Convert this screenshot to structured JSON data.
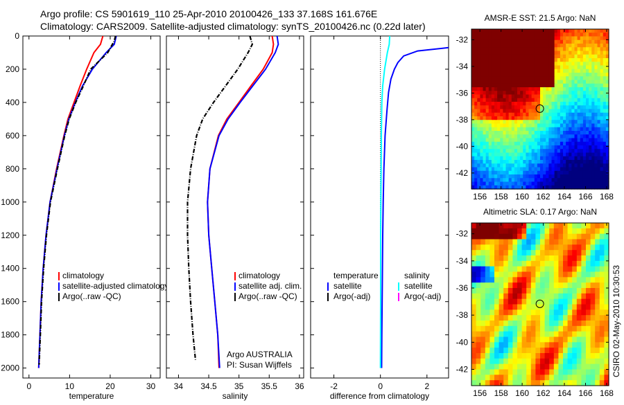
{
  "title_lines": [
    "Argo profile: CS 5901619_110 25-Apr-2010 20100426_133 37.168S 161.676E",
    "Climatology: CARS2009. Satellite-adjusted climatology: synTS_20100426.nc (0.22d later)"
  ],
  "side_label": "CSIRO 02-May-2010 10:30:53",
  "credit": [
    "Argo AUSTRALIA",
    "PI: Susan Wijffels"
  ],
  "chart_data": [
    {
      "type": "line",
      "id": "temperature",
      "xlabel": "temperature",
      "ylabel": "",
      "xlim": [
        -1.5,
        32.3
      ],
      "ylim": [
        0,
        2060
      ],
      "xticks": [
        0,
        10,
        20,
        30
      ],
      "yticks": [
        0,
        200,
        400,
        600,
        800,
        1000,
        1200,
        1400,
        1600,
        1800,
        2000
      ],
      "legend": [
        "climatology",
        "satellite-adjusted climatology",
        "Argo(..raw -QC)"
      ],
      "series": [
        {
          "name": "climatology",
          "color": "#ff0000",
          "depth": [
            0,
            50,
            100,
            200,
            300,
            400,
            500,
            600,
            800,
            1000,
            1200,
            1400,
            1600,
            1800,
            2000
          ],
          "values": [
            18.2,
            17.6,
            16,
            14.2,
            12.6,
            11.1,
            9.6,
            8.6,
            6.8,
            5.2,
            4.2,
            3.5,
            3,
            2.7,
            2.4
          ]
        },
        {
          "name": "satellite-adjusted climatology",
          "color": "#0000ff",
          "depth": [
            0,
            50,
            100,
            200,
            300,
            400,
            500,
            600,
            800,
            1000,
            1200,
            1400,
            1600,
            1800,
            2000
          ],
          "values": [
            21.5,
            21,
            19,
            15.6,
            13.2,
            11.4,
            9.8,
            8.7,
            6.9,
            5.2,
            4.2,
            3.5,
            3,
            2.7,
            2.4
          ]
        },
        {
          "name": "Argo(..raw -QC)",
          "color": "#000000",
          "depth": [
            0,
            30,
            100,
            200,
            300,
            400,
            500,
            600,
            800,
            1000,
            1200,
            1400,
            1600,
            1800,
            1980
          ],
          "values": [
            21.3,
            21,
            19.4,
            15.2,
            13.4,
            11.5,
            9.9,
            8.8,
            7,
            5.3,
            4.3,
            3.6,
            3.1,
            2.8,
            2.5
          ]
        }
      ]
    },
    {
      "type": "line",
      "id": "salinity",
      "xlabel": "salinity",
      "xlim": [
        33.8,
        36.07
      ],
      "ylim": [
        0,
        2060
      ],
      "xticks": [
        34,
        34.5,
        35,
        35.5,
        36
      ],
      "legend": [
        "climatology",
        "satellite adj. clim.",
        "Argo(..raw -QC)"
      ],
      "series": [
        {
          "name": "climatology",
          "color": "#ff0000",
          "depth": [
            0,
            50,
            100,
            200,
            300,
            400,
            500,
            600,
            800,
            1000,
            1200,
            1400,
            1600,
            1800,
            2000
          ],
          "values": [
            35.55,
            35.57,
            35.55,
            35.4,
            35.2,
            35.0,
            34.8,
            34.66,
            34.52,
            34.48,
            34.5,
            34.55,
            34.6,
            34.65,
            34.67
          ]
        },
        {
          "name": "satellite adj. clim.",
          "color": "#0000ff",
          "depth": [
            0,
            50,
            100,
            200,
            300,
            400,
            500,
            600,
            800,
            1000,
            1200,
            1400,
            1600,
            1800,
            2000
          ],
          "values": [
            35.63,
            35.65,
            35.6,
            35.44,
            35.23,
            35.02,
            34.82,
            34.67,
            34.52,
            34.48,
            34.5,
            34.55,
            34.6,
            34.65,
            34.68
          ]
        },
        {
          "name": "Argo(..raw -QC)",
          "color": "#000000",
          "depth": [
            0,
            50,
            100,
            200,
            300,
            400,
            500,
            600,
            800,
            1000,
            1200,
            1400,
            1600,
            1800,
            1950
          ],
          "values": [
            35.18,
            35.22,
            35.15,
            34.98,
            34.78,
            34.58,
            34.4,
            34.3,
            34.2,
            34.15,
            34.15,
            34.17,
            34.2,
            34.24,
            34.28
          ]
        }
      ]
    },
    {
      "type": "line",
      "id": "difference",
      "xlabel": "difference from climatology",
      "xlim": [
        -3.0,
        2.93
      ],
      "ylim": [
        0,
        2060
      ],
      "xticks": [
        -2,
        0,
        2
      ],
      "legend_headers": [
        "temperature",
        "salinity"
      ],
      "legend": [
        "satellite",
        "Argo(-adj)",
        "satellite",
        "Argo(-adj)"
      ],
      "legend_colors": [
        "#0000ff",
        "#000000",
        "#00ffff",
        "#ff00ff"
      ],
      "series": [
        {
          "name": "temperature satellite",
          "color": "#0000ff",
          "depth": [
            70,
            90,
            120,
            160,
            200,
            260,
            340,
            450,
            600,
            800,
            1000,
            1200,
            1500,
            1800,
            2000
          ],
          "values": [
            2.93,
            1.6,
            1.0,
            0.75,
            0.6,
            0.45,
            0.35,
            0.28,
            0.2,
            0.15,
            0.12,
            0.1,
            0.08,
            0.06,
            0.05
          ]
        },
        {
          "name": "salinity satellite",
          "color": "#00ffff",
          "depth": [
            0,
            50,
            100,
            200,
            300,
            400,
            600,
            800,
            1000,
            1200,
            1600,
            2000
          ],
          "values": [
            0.4,
            0.38,
            0.3,
            0.18,
            0.1,
            0.06,
            0.04,
            0.03,
            0.02,
            0.01,
            0.01,
            0.0
          ]
        }
      ]
    },
    {
      "type": "heatmap",
      "id": "sst-map",
      "title": "AMSR-E SST: 21.5 Argo: NaN",
      "xlim": [
        155.2,
        168.2
      ],
      "ylim": [
        -43.2,
        -31.2
      ],
      "xticks": [
        156,
        158,
        160,
        162,
        164,
        166,
        168
      ],
      "yticks": [
        -32,
        -34,
        -36,
        -38,
        -40,
        -42
      ],
      "marker": {
        "lon": 161.676,
        "lat": -37.168
      }
    },
    {
      "type": "heatmap",
      "id": "sla-map",
      "title": "Altimetric SLA: 0.17 Argo: NaN",
      "xlim": [
        155.2,
        168.2
      ],
      "ylim": [
        -43.2,
        -31.2
      ],
      "xticks": [
        156,
        158,
        160,
        162,
        164,
        166,
        168
      ],
      "yticks": [
        -32,
        -34,
        -36,
        -38,
        -40,
        -42
      ],
      "marker": {
        "lon": 161.676,
        "lat": -37.168
      }
    }
  ]
}
